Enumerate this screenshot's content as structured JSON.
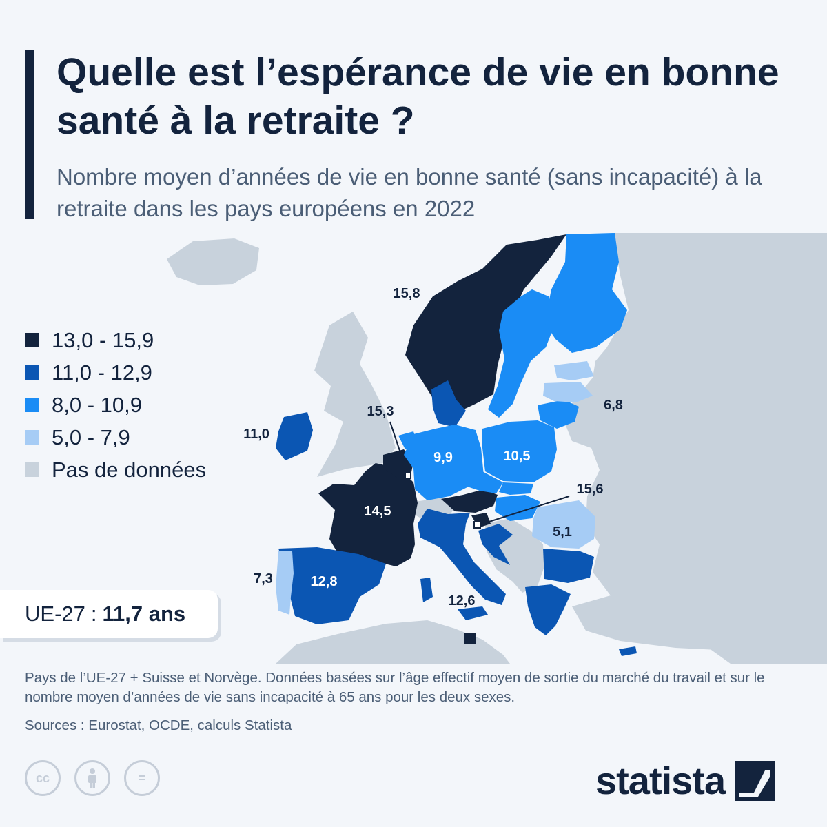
{
  "header": {
    "title": "Quelle est l’espérance de vie en bonne santé à la retraite ?",
    "subtitle": "Nombre moyen d’années de vie en bonne santé (sans incapacité) à la retraite dans les pays européens en 2022"
  },
  "colors": {
    "band_13_15_9": "#13233d",
    "band_11_12_9": "#0b56b3",
    "band_8_10_9": "#1a8cf5",
    "band_5_7_9": "#a6ccf5",
    "no_data": "#c8d2dc",
    "sea": "#f3f6fa"
  },
  "legend": [
    {
      "label": "13,0 - 15,9",
      "color": "#13233d"
    },
    {
      "label": "11,0 - 12,9",
      "color": "#0b56b3"
    },
    {
      "label": "8,0 - 10,9",
      "color": "#1a8cf5"
    },
    {
      "label": "5,0 - 7,9",
      "color": "#a6ccf5"
    },
    {
      "label": "Pas de données",
      "color": "#c8d2dc"
    }
  ],
  "map_labels": {
    "norway": "15,8",
    "benelux": "15,3",
    "lithuania": "6,8",
    "ireland": "11,0",
    "germany": "9,9",
    "poland": "10,5",
    "slovenia": "15,6",
    "france": "14,5",
    "romania": "5,1",
    "portugal": "7,3",
    "spain": "12,8",
    "italy": "12,6"
  },
  "eu_average": {
    "label": "UE-27",
    "separator": ":",
    "value": "11,7 ans"
  },
  "footnote": "Pays de l’UE-27 + Suisse et Norvège. Données basées sur l’âge effectif moyen de sortie du marché du travail et sur le nombre moyen d’années de vie sans incapacité à 65 ans pour les deux sexes.",
  "sources": "Sources : Eurostat, OCDE, calculs Statista",
  "license_icons": [
    "cc-icon",
    "attribution-icon",
    "no-derivatives-icon"
  ],
  "license_glyphs": {
    "cc": "cc",
    "nd": "="
  },
  "brand": {
    "name": "statista"
  }
}
